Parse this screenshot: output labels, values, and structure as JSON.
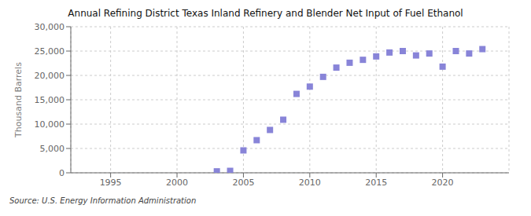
{
  "chart_data": {
    "type": "scatter",
    "title": "Annual Refining District Texas Inland Refinery and Blender Net Input of Fuel Ethanol",
    "ylabel": "Thousand Barrels",
    "annotations": [
      "Source: U.S. Energy Information Administration"
    ],
    "x": [
      2003,
      2004,
      2005,
      2006,
      2007,
      2008,
      2009,
      2010,
      2011,
      2012,
      2013,
      2014,
      2015,
      2016,
      2017,
      2018,
      2019,
      2020,
      2021,
      2022,
      2023
    ],
    "values": [
      300,
      400,
      4600,
      6700,
      8800,
      10900,
      16200,
      17700,
      19700,
      21600,
      22600,
      23200,
      23900,
      24700,
      25000,
      24100,
      24500,
      21800,
      25000,
      24500,
      25400
    ],
    "xlim": [
      1992,
      2025
    ],
    "xticks": [
      1995,
      2000,
      2005,
      2010,
      2015,
      2020
    ],
    "ylim": [
      0,
      30000
    ],
    "yticks": [
      0,
      {
        "value": 5000,
        "label": "5,000"
      },
      {
        "value": 10000,
        "label": "10,000"
      },
      {
        "value": 15000,
        "label": "15,000"
      },
      {
        "value": 20000,
        "label": "20,000"
      },
      {
        "value": 25000,
        "label": "25,000"
      },
      {
        "value": 30000,
        "label": "30,000"
      }
    ],
    "grid": true,
    "marker": "square"
  }
}
